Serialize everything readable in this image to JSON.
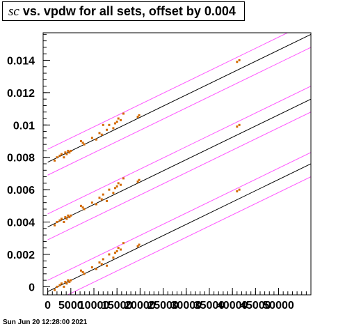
{
  "title": {
    "symbol": "sc",
    "text": " vs. vpdw for all sets, offset by 0.004"
  },
  "footer": "Sun Jun 20 12:28:00 2021",
  "colors": {
    "fit_line": "#000000",
    "band_line": "#ff55ff",
    "markers": "#d46a00",
    "frame": "#000000"
  },
  "chart_data": {
    "type": "scatter",
    "title": "sc vs. vpdw for all sets, offset by 0.004",
    "xlabel": "",
    "ylabel": "",
    "xlim": [
      -1000,
      57000
    ],
    "ylim": [
      -0.0005,
      0.0157
    ],
    "x_ticks": [
      {
        "v": 0,
        "label": "0"
      },
      {
        "v": 5000,
        "label": "5000"
      },
      {
        "v": 10000,
        "label": "10000"
      },
      {
        "v": 15000,
        "label": "15000"
      },
      {
        "v": 20000,
        "label": "20000"
      },
      {
        "v": 25000,
        "label": "25000"
      },
      {
        "v": 30000,
        "label": "30000"
      },
      {
        "v": 35000,
        "label": "35000"
      },
      {
        "v": 40000,
        "label": "40000"
      },
      {
        "v": 45000,
        "label": "45000"
      },
      {
        "v": 50000,
        "label": "50000"
      }
    ],
    "y_ticks": [
      {
        "v": 0,
        "label": "0"
      },
      {
        "v": 0.002,
        "label": "0.002"
      },
      {
        "v": 0.004,
        "label": "0.004"
      },
      {
        "v": 0.006,
        "label": "0.006"
      },
      {
        "v": 0.008,
        "label": "0.008"
      },
      {
        "v": 0.01,
        "label": "0.01"
      },
      {
        "v": 0.012,
        "label": "0.012"
      },
      {
        "v": 0.014,
        "label": "0.014"
      }
    ],
    "grid": false,
    "lines": [
      {
        "role": "fit",
        "x": [
          0,
          57000
        ],
        "y": [
          -0.0003,
          0.0076
        ]
      },
      {
        "role": "band",
        "x": [
          0,
          57000
        ],
        "y": [
          0.0004,
          0.0083
        ]
      },
      {
        "role": "band",
        "x": [
          0,
          57000
        ],
        "y": [
          -0.0011,
          0.0068
        ]
      },
      {
        "role": "fit",
        "x": [
          0,
          57000
        ],
        "y": [
          0.0037,
          0.0116
        ]
      },
      {
        "role": "band",
        "x": [
          0,
          57000
        ],
        "y": [
          0.0045,
          0.0124
        ]
      },
      {
        "role": "band",
        "x": [
          0,
          57000
        ],
        "y": [
          0.0029,
          0.0108
        ]
      },
      {
        "role": "fit",
        "x": [
          0,
          57000
        ],
        "y": [
          0.0077,
          0.0156
        ]
      },
      {
        "role": "band",
        "x": [
          0,
          57000
        ],
        "y": [
          0.0085,
          0.0164
        ]
      },
      {
        "role": "band",
        "x": [
          0,
          57000
        ],
        "y": [
          0.0069,
          0.0148
        ]
      }
    ],
    "series": [
      {
        "x": [
          1500,
          2000,
          2600,
          3000,
          3500,
          3800,
          4100,
          4400,
          4700,
          5000,
          7200,
          7600,
          7900,
          9600,
          10500,
          11200,
          11700,
          12000,
          12800,
          13300,
          14200,
          14600,
          15000,
          15300,
          15800,
          16400,
          19500,
          19800,
          41000,
          41500
        ],
        "y": [
          -0.0002,
          0.0,
          0.0001,
          0.0002,
          0.0,
          0.0003,
          0.0002,
          0.0004,
          0.0003,
          0.0004,
          0.001,
          0.0009,
          0.0008,
          0.0012,
          0.0011,
          0.0015,
          0.0014,
          0.0017,
          0.0013,
          0.002,
          0.0018,
          0.0021,
          0.0022,
          0.0024,
          0.0023,
          0.0027,
          0.0025,
          0.0026,
          0.0059,
          0.006
        ]
      },
      {
        "x": [
          1500,
          2000,
          2600,
          3000,
          3500,
          3800,
          4100,
          4400,
          4700,
          5000,
          7200,
          7600,
          7900,
          9600,
          10500,
          11200,
          11700,
          12000,
          12800,
          13300,
          14200,
          14600,
          15000,
          15300,
          15800,
          16400,
          19500,
          19800,
          41000,
          41500
        ],
        "y": [
          0.0038,
          0.004,
          0.0041,
          0.0042,
          0.004,
          0.0043,
          0.0042,
          0.0044,
          0.0043,
          0.0044,
          0.005,
          0.0049,
          0.0048,
          0.0052,
          0.0051,
          0.0055,
          0.0054,
          0.0057,
          0.0053,
          0.006,
          0.0058,
          0.0061,
          0.0062,
          0.0064,
          0.0063,
          0.0067,
          0.0065,
          0.0066,
          0.0099,
          0.01
        ]
      },
      {
        "x": [
          1500,
          2000,
          2600,
          3000,
          3500,
          3800,
          4100,
          4400,
          4700,
          5000,
          7200,
          7600,
          7900,
          9600,
          10500,
          11200,
          11700,
          12000,
          12800,
          13300,
          14200,
          14600,
          15000,
          15300,
          15800,
          16400,
          19500,
          19800,
          41000,
          41500
        ],
        "y": [
          0.0078,
          0.008,
          0.0081,
          0.0082,
          0.008,
          0.0083,
          0.0082,
          0.0084,
          0.0083,
          0.0084,
          0.009,
          0.0089,
          0.0088,
          0.0092,
          0.0091,
          0.0095,
          0.0094,
          0.01,
          0.0097,
          0.01,
          0.0098,
          0.0101,
          0.0102,
          0.0104,
          0.0103,
          0.0107,
          0.0105,
          0.0106,
          0.0139,
          0.014
        ]
      }
    ]
  }
}
